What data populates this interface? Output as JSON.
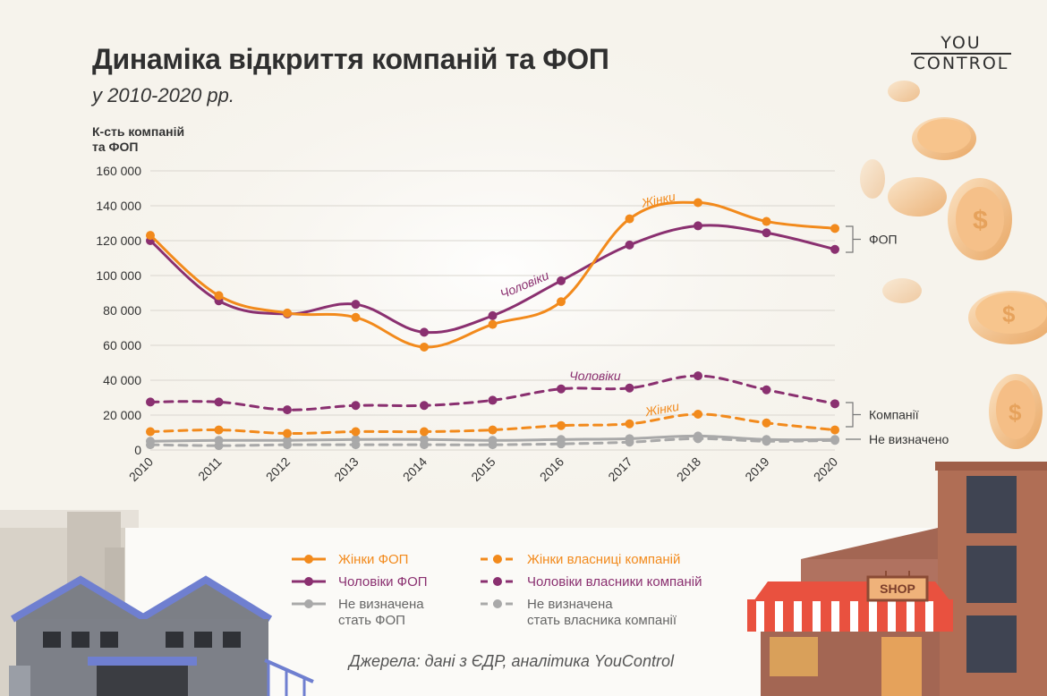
{
  "header": {
    "title": "Динаміка відкриття компаній та ФОП",
    "subtitle": "у 2010-2020 рр."
  },
  "logo": {
    "line1": "YOU",
    "line2": "CONTROL"
  },
  "source": "Джерела: дані з ЄДР, аналітика YouControl",
  "colors": {
    "women": "#f28a1c",
    "men": "#8a3070",
    "undefined": "#a9a9a9",
    "text": "#333333",
    "grid": "#d9d6cf"
  },
  "chart_data": {
    "type": "line",
    "ylabel": "К-сть компаній та ФОП",
    "ylabel_lines": [
      "К-сть компаній",
      "та ФОП"
    ],
    "ylim": [
      0,
      160000
    ],
    "yticks": [
      "0",
      "20 000",
      "40 000",
      "60 000",
      "80 000",
      "100 000",
      "120 000",
      "140 000",
      "160 000"
    ],
    "grid": true,
    "categories": [
      "2010",
      "2011",
      "2012",
      "2013",
      "2014",
      "2015",
      "2016",
      "2017",
      "2018",
      "2019",
      "2020"
    ],
    "series": [
      {
        "name": "Жінки ФОП",
        "color": "#f28a1c",
        "dash": false,
        "values": [
          123000,
          88500,
          78500,
          76000,
          59000,
          72000,
          85000,
          132500,
          141800,
          131000,
          127000
        ]
      },
      {
        "name": "Чоловіки ФОП",
        "color": "#8a3070",
        "dash": false,
        "values": [
          120000,
          85500,
          78000,
          83500,
          67500,
          77000,
          97000,
          117500,
          128500,
          124500,
          115000
        ]
      },
      {
        "name": "Не визначена стать ФОП",
        "color": "#a9a9a9",
        "dash": false,
        "values": [
          5000,
          5500,
          5500,
          6000,
          6000,
          5500,
          6000,
          6500,
          8000,
          6000,
          6000
        ]
      },
      {
        "name": "Жінки власниці компаній",
        "color": "#f28a1c",
        "dash": true,
        "values": [
          10500,
          11500,
          9500,
          10500,
          10500,
          11500,
          14000,
          15000,
          20500,
          15500,
          11500
        ]
      },
      {
        "name": "Чоловіки власники компаній",
        "color": "#8a3070",
        "dash": true,
        "values": [
          27500,
          27500,
          23000,
          25500,
          25500,
          28500,
          35000,
          35500,
          42500,
          34500,
          26500
        ]
      },
      {
        "name": "Не визначена стать власника компанії",
        "color": "#a9a9a9",
        "dash": true,
        "values": [
          3000,
          2500,
          3000,
          3000,
          3000,
          3000,
          3500,
          4500,
          6500,
          5000,
          5500
        ]
      }
    ],
    "annotations": {
      "women_fop": "Жінки",
      "men_fop": "Чоловіки",
      "men_companies": "Чоловіки",
      "women_companies": "Жінки",
      "group_fop": "ФОП",
      "group_companies": "Компанії",
      "group_undefined": "Не визначено"
    },
    "legend": [
      {
        "label": "Жінки ФОП",
        "color": "#f28a1c",
        "dash": false
      },
      {
        "label": "Жінки власниці компаній",
        "color": "#f28a1c",
        "dash": true
      },
      {
        "label": "Чоловіки ФОП",
        "color": "#8a3070",
        "dash": false
      },
      {
        "label": "Чоловіки власники компаній",
        "color": "#8a3070",
        "dash": true
      },
      {
        "label": "Не визначена стать ФОП",
        "color": "#a9a9a9",
        "dash": false
      },
      {
        "label": "Не визначена стать власника компанії",
        "color": "#a9a9a9",
        "dash": true
      }
    ]
  },
  "illustration": {
    "shop_sign": "SHOP"
  }
}
